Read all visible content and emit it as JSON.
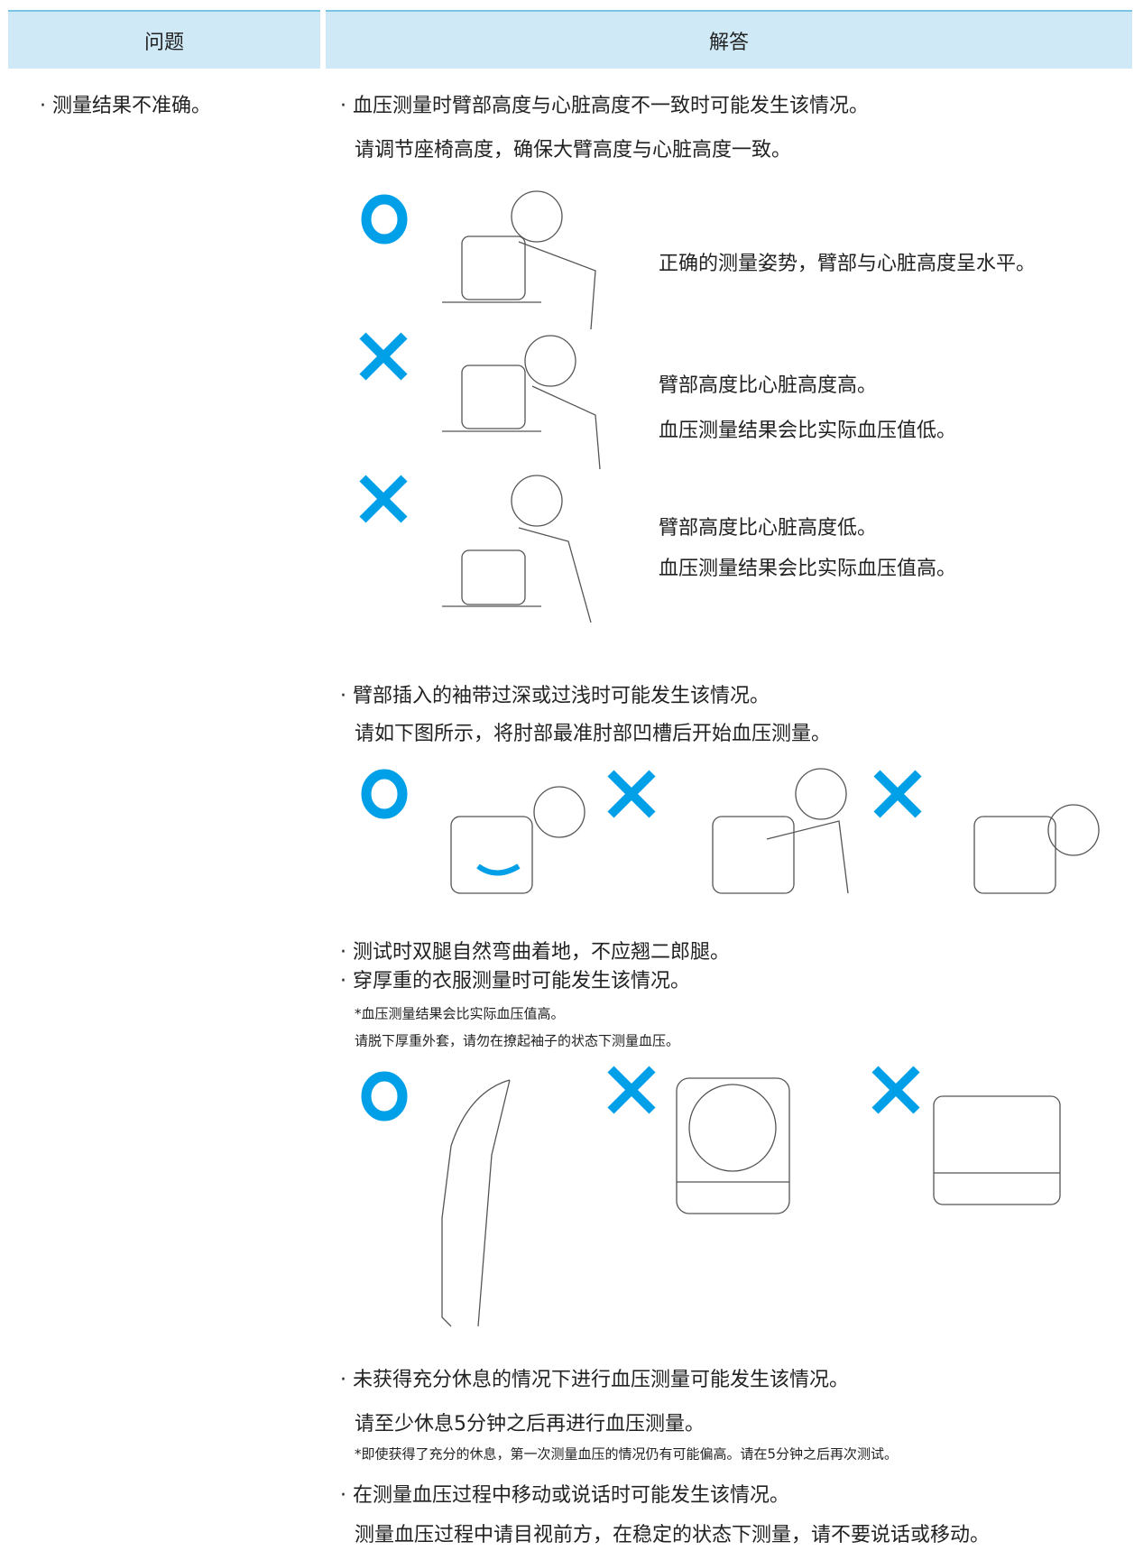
{
  "header": {
    "columns": [
      "问题",
      "解答"
    ]
  },
  "question": "· 测量结果不准确。",
  "answers": [
    {
      "lines": [
        "· 血压测量时臂部高度与心脏高度不一致时可能发生该情况。",
        "请调节座椅高度，确保大臂高度与心脏高度一致。"
      ]
    },
    {
      "captions": [
        [
          "正确的测量姿势，臂部与心脏高度呈水平。"
        ],
        [
          "臂部高度比心脏高度高。",
          "血压测量结果会比实际血压值低。"
        ],
        [
          "臂部高度比心脏高度低。",
          "血压测量结果会比实际血压值高。"
        ]
      ]
    },
    {
      "lines": [
        "· 臂部插入的袖带过深或过浅时可能发生该情况。",
        "请如下图所示，将肘部最准肘部凹槽后开始血压测量。"
      ]
    },
    {
      "lines": [
        "· 测试时双腿自然弯曲着地，不应翘二郎腿。",
        "· 穿厚重的衣服测量时可能发生该情况。"
      ],
      "notes": [
        "*血压测量结果会比实际血压值高。",
        "请脱下厚重外套，请勿在撩起袖子的状态下测量血压。"
      ]
    },
    {
      "lines": [
        "· 未获得充分休息的情况下进行血压测量可能发生该情况。",
        "请至少休息5分钟之后再进行血压测量。"
      ],
      "notes": [
        "*即使获得了充分的休息，第一次测量血压的情况仍有可能偏高。请在5分钟之后再次测试。"
      ]
    },
    {
      "lines": [
        "· 在测量血压过程中移动或说话时可能发生该情况。",
        "测量血压过程中请目视前方，在稳定的状态下测量，请不要说话或移动。"
      ]
    }
  ]
}
